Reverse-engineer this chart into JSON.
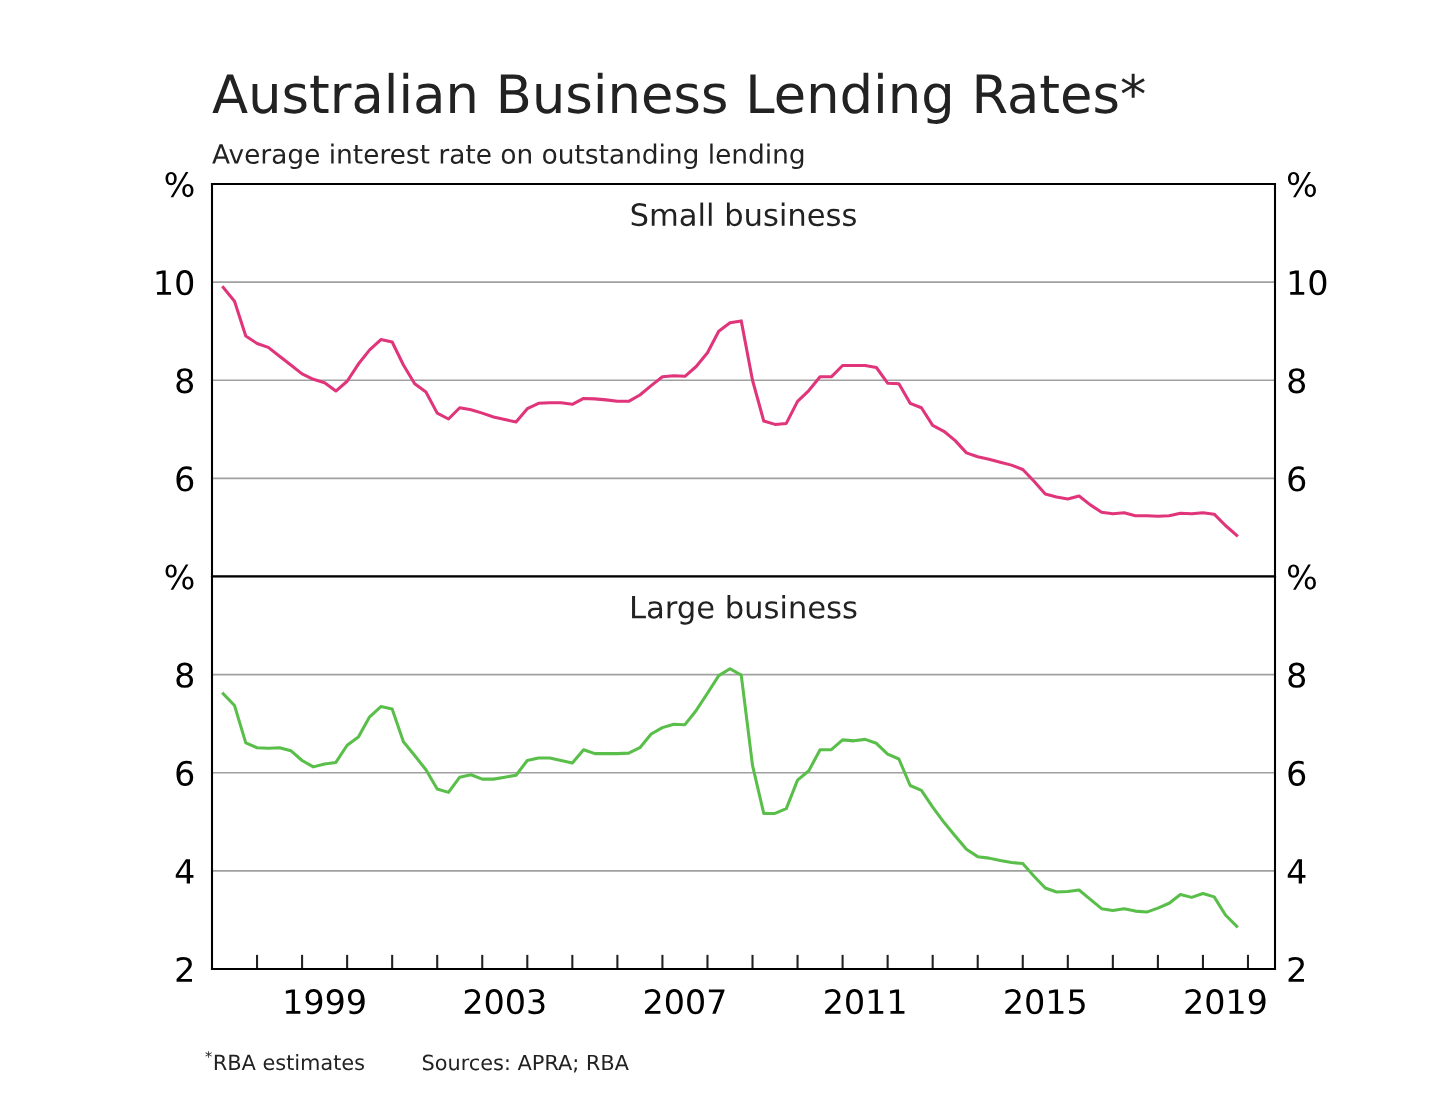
{
  "chart_data": [
    {
      "type": "line",
      "title": "Australian Business Lending Rates*",
      "subtitle": "Average interest rate on outstanding lending",
      "annotations": [
        "Small business"
      ],
      "x": [
        1997.25,
        1997.5,
        1997.75,
        1998,
        1998.25,
        1998.5,
        1998.75,
        1999,
        1999.25,
        1999.5,
        1999.75,
        2000,
        2000.25,
        2000.5,
        2000.75,
        2001,
        2001.25,
        2001.5,
        2001.75,
        2002,
        2002.25,
        2002.5,
        2002.75,
        2003,
        2003.25,
        2003.5,
        2003.75,
        2004,
        2004.25,
        2004.5,
        2004.75,
        2005,
        2005.25,
        2005.5,
        2005.75,
        2006,
        2006.25,
        2006.5,
        2006.75,
        2007,
        2007.25,
        2007.5,
        2007.75,
        2008,
        2008.25,
        2008.5,
        2008.75,
        2009,
        2009.25,
        2009.5,
        2009.75,
        2010,
        2010.25,
        2010.5,
        2010.75,
        2011,
        2011.25,
        2011.5,
        2011.75,
        2012,
        2012.25,
        2012.5,
        2012.75,
        2013,
        2013.25,
        2013.5,
        2013.75,
        2014,
        2014.25,
        2014.5,
        2014.75,
        2015,
        2015.25,
        2015.5,
        2015.75,
        2016,
        2016.25,
        2016.5,
        2016.75,
        2017,
        2017.25,
        2017.5,
        2017.75,
        2018,
        2018.25,
        2018.5,
        2018.75,
        2019,
        2019.25,
        2019.5,
        2019.75
      ],
      "series": [
        {
          "color": "#e0357a",
          "values": [
            9.89,
            9.61,
            8.9,
            8.75,
            8.67,
            8.49,
            8.31,
            8.13,
            8.02,
            7.95,
            7.78,
            7.98,
            8.33,
            8.62,
            8.83,
            8.78,
            8.31,
            7.93,
            7.76,
            7.33,
            7.21,
            7.44,
            7.4,
            7.33,
            7.25,
            7.2,
            7.15,
            7.42,
            7.53,
            7.54,
            7.54,
            7.51,
            7.63,
            7.62,
            7.6,
            7.57,
            7.57,
            7.7,
            7.89,
            8.07,
            8.09,
            8.08,
            8.28,
            8.56,
            9.0,
            9.17,
            9.21,
            8.0,
            7.17,
            7.1,
            7.12,
            7.57,
            7.79,
            8.07,
            8.07,
            8.3,
            8.3,
            8.3,
            8.26,
            7.94,
            7.93,
            7.53,
            7.44,
            7.08,
            6.96,
            6.77,
            6.52,
            6.44,
            6.39,
            6.33,
            6.27,
            6.18,
            5.94,
            5.68,
            5.62,
            5.58,
            5.64,
            5.46,
            5.31,
            5.28,
            5.3,
            5.24,
            5.24,
            5.23,
            5.24,
            5.29,
            5.28,
            5.3,
            5.27,
            5.04,
            4.84
          ]
        }
      ],
      "xlim": [
        1997,
        2020.6
      ],
      "ylim": [
        4,
        12
      ],
      "yticks": [
        {
          "value": 4,
          "label": null
        },
        6,
        8,
        10,
        {
          "value": 12,
          "label": "%"
        }
      ],
      "y2lim": [
        4,
        12
      ],
      "y2ticks": [
        {
          "value": 4,
          "label": null
        },
        6,
        8,
        10,
        {
          "value": 12,
          "label": "%"
        }
      ],
      "tick_labels": "y",
      "grid": "y",
      "legend": false,
      "line_style": "solid"
    },
    {
      "type": "line",
      "annotations": [
        "Large business",
        "$^{*}$RBA estimates",
        "Sources: APRA; RBA"
      ],
      "x": [
        1997.25,
        1997.5,
        1997.75,
        1998,
        1998.25,
        1998.5,
        1998.75,
        1999,
        1999.25,
        1999.5,
        1999.75,
        2000,
        2000.25,
        2000.5,
        2000.75,
        2001,
        2001.25,
        2001.5,
        2001.75,
        2002,
        2002.25,
        2002.5,
        2002.75,
        2003,
        2003.25,
        2003.5,
        2003.75,
        2004,
        2004.25,
        2004.5,
        2004.75,
        2005,
        2005.25,
        2005.5,
        2005.75,
        2006,
        2006.25,
        2006.5,
        2006.75,
        2007,
        2007.25,
        2007.5,
        2007.75,
        2008,
        2008.25,
        2008.5,
        2008.75,
        2009,
        2009.25,
        2009.5,
        2009.75,
        2010,
        2010.25,
        2010.5,
        2010.75,
        2011,
        2011.25,
        2011.5,
        2011.75,
        2012,
        2012.25,
        2012.5,
        2012.75,
        2013,
        2013.25,
        2013.5,
        2013.75,
        2014,
        2014.25,
        2014.5,
        2014.75,
        2015,
        2015.25,
        2015.5,
        2015.75,
        2016,
        2016.25,
        2016.5,
        2016.75,
        2017,
        2017.25,
        2017.5,
        2017.75,
        2018,
        2018.25,
        2018.5,
        2018.75,
        2019,
        2019.25,
        2019.5,
        2019.75
      ],
      "series": [
        {
          "color": "#5abf4a",
          "values": [
            7.61,
            7.37,
            6.61,
            6.51,
            6.5,
            6.51,
            6.45,
            6.25,
            6.12,
            6.18,
            6.21,
            6.56,
            6.73,
            7.14,
            7.35,
            7.3,
            6.63,
            6.35,
            6.06,
            5.67,
            5.6,
            5.91,
            5.96,
            5.87,
            5.87,
            5.91,
            5.95,
            6.25,
            6.3,
            6.3,
            6.25,
            6.2,
            6.47,
            6.39,
            6.39,
            6.39,
            6.4,
            6.51,
            6.79,
            6.92,
            6.99,
            6.98,
            7.27,
            7.62,
            7.98,
            8.12,
            7.99,
            6.15,
            5.17,
            5.17,
            5.27,
            5.85,
            6.04,
            6.47,
            6.47,
            6.67,
            6.65,
            6.68,
            6.6,
            6.38,
            6.28,
            5.74,
            5.64,
            5.3,
            4.99,
            4.71,
            4.44,
            4.29,
            4.26,
            4.21,
            4.17,
            4.15,
            3.89,
            3.65,
            3.57,
            3.58,
            3.61,
            3.42,
            3.23,
            3.19,
            3.23,
            3.18,
            3.16,
            3.24,
            3.34,
            3.52,
            3.46,
            3.54,
            3.47,
            3.1,
            2.87
          ]
        }
      ],
      "xlim": [
        1997,
        2020.6
      ],
      "ylim": [
        2,
        10
      ],
      "xticks": [
        {
          "value": 1998,
          "label": null
        },
        {
          "value": 1999,
          "label": null
        },
        {
          "value": 2000,
          "label": null
        },
        {
          "value": 2001,
          "label": null
        },
        {
          "value": 2002,
          "label": null
        },
        {
          "value": 2003,
          "label": null
        },
        {
          "value": 2004,
          "label": null
        },
        {
          "value": 2005,
          "label": null
        },
        {
          "value": 2006,
          "label": null
        },
        {
          "value": 2007,
          "label": null
        },
        {
          "value": 2008,
          "label": null
        },
        {
          "value": 2009,
          "label": null
        },
        {
          "value": 2010,
          "label": null
        },
        {
          "value": 2011,
          "label": null
        },
        {
          "value": 2012,
          "label": null
        },
        {
          "value": 2013,
          "label": null
        },
        {
          "value": 2014,
          "label": null
        },
        {
          "value": 2015,
          "label": null
        },
        {
          "value": 2016,
          "label": null
        },
        {
          "value": 2017,
          "label": null
        },
        {
          "value": 2018,
          "label": null
        },
        {
          "value": 2019,
          "label": null
        },
        {
          "value": 2020,
          "label": null
        },
        {
          "value": 1999.5,
          "label": "1999"
        },
        {
          "value": 2003.5,
          "label": "2003"
        },
        {
          "value": 2007.5,
          "label": "2007"
        },
        {
          "value": 2011.5,
          "label": "2011"
        },
        {
          "value": 2015.5,
          "label": "2015"
        },
        {
          "value": 2019.5,
          "label": "2019"
        }
      ],
      "yticks": [
        2,
        4,
        6,
        8,
        {
          "value": 10,
          "label": "%"
        }
      ],
      "y2lim": [
        2,
        10
      ],
      "y2ticks": [
        2,
        4,
        6,
        8,
        {
          "value": 10,
          "label": "%"
        }
      ],
      "grid": "y",
      "legend": false,
      "line_style": "solid"
    }
  ]
}
